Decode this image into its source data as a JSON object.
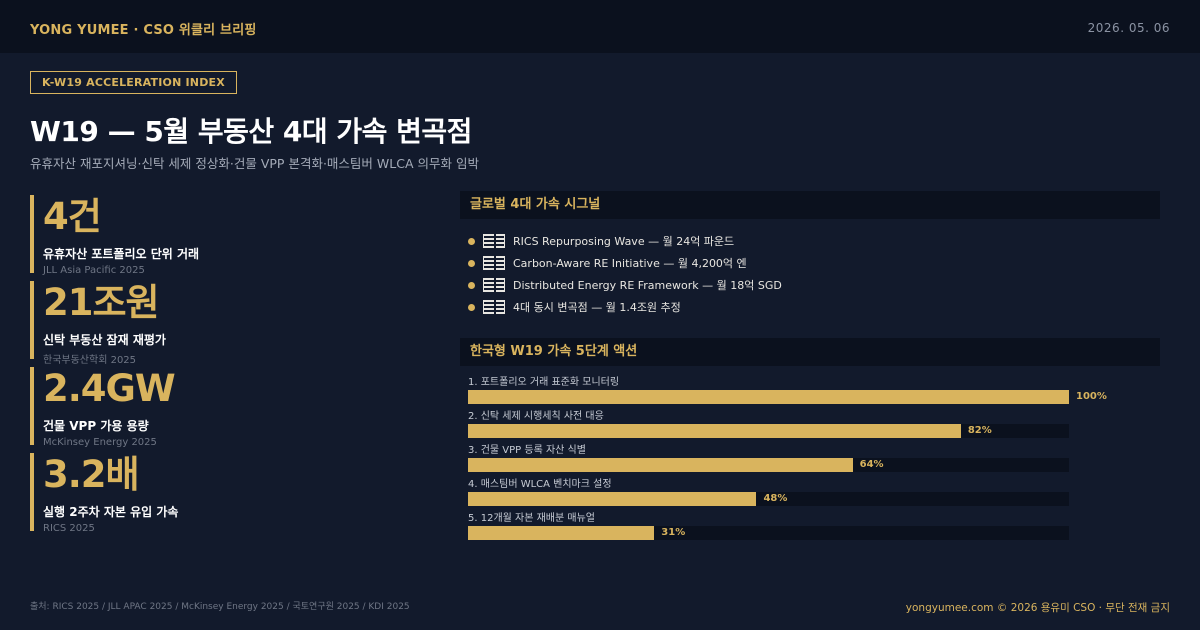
{
  "header": {
    "brand": "YONG YUMEE  ·  CSO 위클리 브리핑",
    "date": "2026. 05. 06"
  },
  "tag": "K-W19 ACCELERATION INDEX",
  "title": "W19 — 5월 부동산 4대 가속 변곡점",
  "subtitle": "유휴자산 재포지셔닝·신탁 세제 정상화·건물 VPP 본격화·매스팀버 WLCA 의무화 임박",
  "stats": [
    {
      "value": "4건",
      "label": "유휴자산 포트폴리오 단위 거래",
      "source": "JLL Asia Pacific 2025"
    },
    {
      "value": "21조원",
      "label": "신탁 부동산 잠재 재평가",
      "source": "한국부동산학회 2025"
    },
    {
      "value": "2.4GW",
      "label": "건물 VPP 가용 용량",
      "source": "McKinsey Energy 2025"
    },
    {
      "value": "3.2배",
      "label": "실행 2주차 자본 유입 가속",
      "source": "RICS 2025"
    }
  ],
  "signals": {
    "heading": "글로벌 4대 가속 시그널",
    "items": [
      "RICS Repurposing Wave — 월 24억 파운드",
      "Carbon-Aware RE Initiative — 월 4,200억 엔",
      "Distributed Energy RE Framework — 월 18억 SGD",
      "4대 동시 변곡점 — 월 1.4조원 추정"
    ]
  },
  "actions": {
    "heading": "한국형 W19 가속 5단계 액션",
    "items": [
      {
        "label": "1. 포트폴리오 거래 표준화 모니터링",
        "pct_label": "100%"
      },
      {
        "label": "2. 신탁 세제 시행세칙 사전 대응",
        "pct_label": "82%"
      },
      {
        "label": "3. 건물 VPP 등록 자산 식별",
        "pct_label": "64%"
      },
      {
        "label": "4. 매스팀버 WLCA 벤치마크 설정",
        "pct_label": "48%"
      },
      {
        "label": "5. 12개월 자본 재배분 매뉴얼",
        "pct_label": "31%"
      }
    ]
  },
  "chart_data": {
    "type": "bar",
    "title": "한국형 W19 가속 5단계 액션",
    "categories": [
      "1. 포트폴리오 거래 표준화 모니터링",
      "2. 신탁 세제 시행세칙 사전 대응",
      "3. 건물 VPP 등록 자산 식별",
      "4. 매스팀버 WLCA 벤치마크 설정",
      "5. 12개월 자본 재배분 매뉴얼"
    ],
    "values": [
      100,
      82,
      64,
      48,
      31
    ],
    "ylim": [
      0,
      100
    ],
    "orientation": "horizontal",
    "grid": false
  },
  "footer": {
    "sources": "출처: RICS 2025 / JLL APAC 2025 / McKinsey Energy 2025 / 국토연구원 2025 / KDI 2025",
    "right": "yongyumee.com  ©  2026 용유미 CSO  ·  무단 전재 금지"
  },
  "colors": {
    "background": "#121a2c",
    "bar": "#0b111e",
    "accent": "#d9b45e"
  },
  "icons": {
    "signal_bullet": "bullet-dot-icon",
    "signal_glyph": "bars-icon"
  }
}
